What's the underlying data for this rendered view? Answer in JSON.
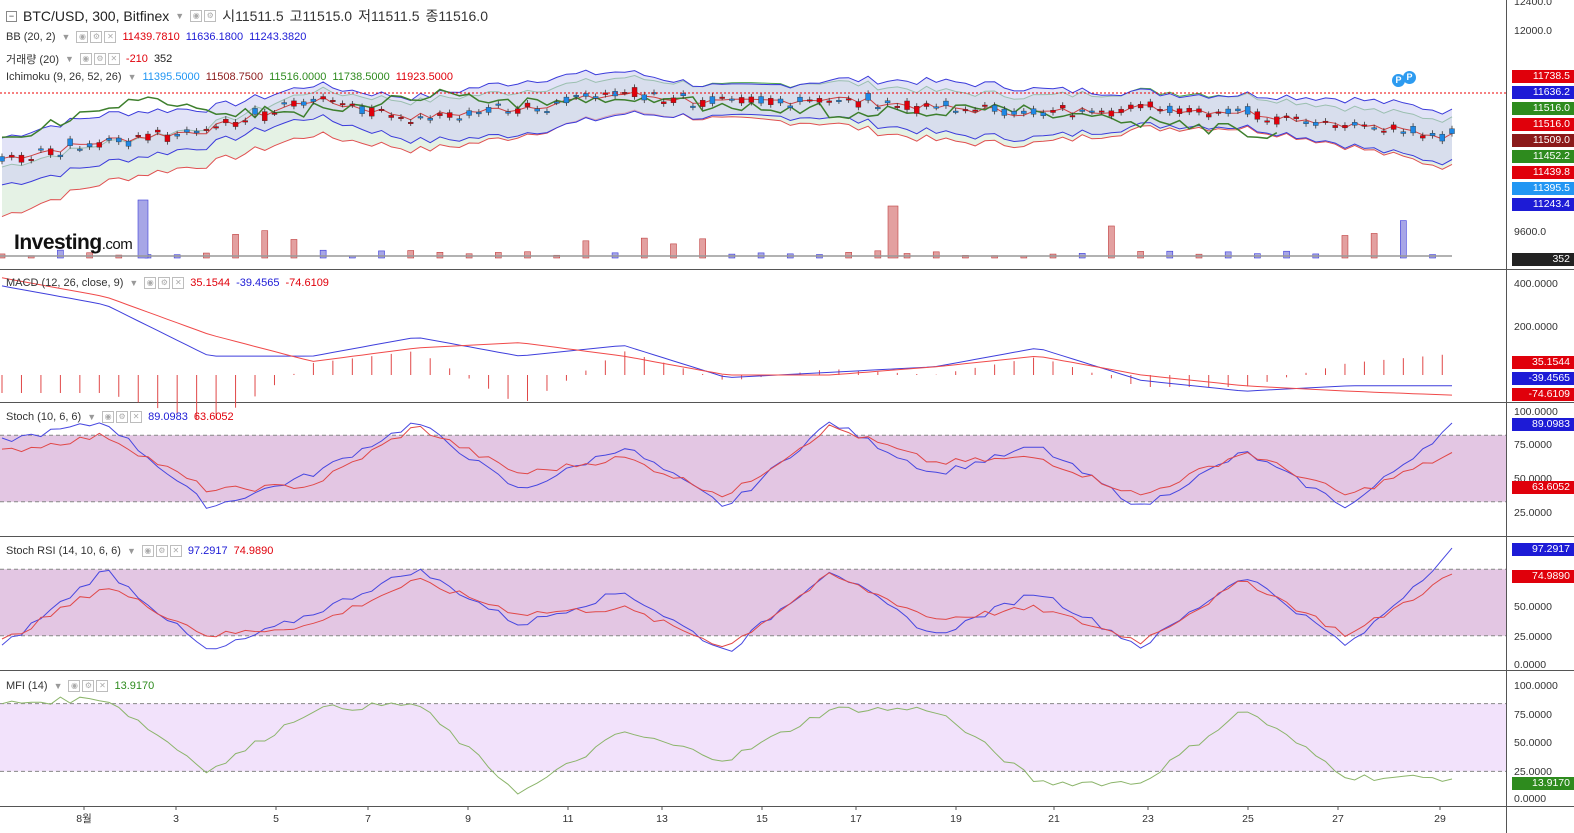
{
  "main": {
    "symbol": "BTC/USD, 300, Bitfinex",
    "ohlc": [
      {
        "k": "시",
        "v": "11511.5"
      },
      {
        "k": "고",
        "v": "11515.0"
      },
      {
        "k": "저",
        "v": "11511.5"
      },
      {
        "k": "종",
        "v": "11516.0"
      }
    ],
    "bb": {
      "label": "BB (20, 2)",
      "v1": "11439.7810",
      "v2": "11636.1800",
      "v3": "11243.3820"
    },
    "volume": {
      "label": "거래량 (20)",
      "v1": "-210",
      "v2": "352"
    },
    "ichimoku": {
      "label": "Ichimoku (9, 26, 52, 26)",
      "v1": "11395.5000",
      "v2": "11508.7500",
      "v3": "11516.0000",
      "v4": "11738.5000",
      "v5": "11923.5000"
    },
    "price_axis": [
      "12400.0",
      "12000.0",
      "9600.0",
      "0"
    ],
    "price_labels": [
      {
        "text": "11738.5",
        "color": "#e0000b"
      },
      {
        "text": "11636.2",
        "color": "#1d1bd6"
      },
      {
        "text": "11516.0",
        "color": "#2e8b1e"
      },
      {
        "text": "11516.0",
        "color": "#e0000b"
      },
      {
        "text": "11509.0",
        "color": "#8b1a1a"
      },
      {
        "text": "11452.2",
        "color": "#2e8b1e"
      },
      {
        "text": "11439.8",
        "color": "#e0000b"
      },
      {
        "text": "11395.5",
        "color": "#2196f3"
      },
      {
        "text": "11243.4",
        "color": "#1d1bd6"
      }
    ],
    "vol_label": "352",
    "logo": "Investing",
    "logo_suffix": ".com",
    "pin_label": "P"
  },
  "macd": {
    "label": "MACD (12, 26, close, 9)",
    "v1": "35.1544",
    "v2": "-39.4565",
    "v3": "-74.6109",
    "axis": [
      "400.0000",
      "200.0000"
    ],
    "labels": [
      {
        "text": "35.1544",
        "color": "#e0000b"
      },
      {
        "text": "-39.4565",
        "color": "#1d1bd6"
      },
      {
        "text": "-74.6109",
        "color": "#e0000b"
      }
    ]
  },
  "stoch": {
    "label": "Stoch (10, 6, 6)",
    "v1": "89.0983",
    "v2": "63.6052",
    "axis": [
      "100.0000",
      "75.0000",
      "50.0000",
      "25.0000"
    ],
    "labels": [
      {
        "text": "89.0983",
        "color": "#1d1bd6"
      },
      {
        "text": "63.6052",
        "color": "#e0000b"
      }
    ]
  },
  "stochrsi": {
    "label": "Stoch RSI (14, 10, 6, 6)",
    "v1": "97.2917",
    "v2": "74.9890",
    "axis": [
      "50.0000",
      "25.0000",
      "0.0000"
    ],
    "labels": [
      {
        "text": "97.2917",
        "color": "#1d1bd6"
      },
      {
        "text": "74.9890",
        "color": "#e0000b"
      }
    ]
  },
  "mfi": {
    "label": "MFI (14)",
    "v1": "13.9170",
    "axis": [
      "100.0000",
      "75.0000",
      "50.0000",
      "25.0000",
      "0.0000"
    ],
    "labels": [
      {
        "text": "13.9170",
        "color": "#2e8b1e"
      }
    ]
  },
  "x_axis": [
    "8월",
    "3",
    "5",
    "7",
    "9",
    "11",
    "13",
    "15",
    "17",
    "19",
    "21",
    "23",
    "25",
    "27",
    "29"
  ],
  "colors": {
    "bull": "#1e88e5",
    "bear": "#e0000b",
    "macd_line": "#3f3fdc",
    "signal_line": "#f04a4a",
    "mfi_line": "#8bb46a",
    "osc_band": "#e3c6e3",
    "mfi_band": "#f2e2fb"
  },
  "chart_data": [
    {
      "type": "line",
      "title": "BTC/USD, 300, Bitfinex",
      "indicators": [
        "BB (20, 2)",
        "거래량 (20)",
        "Ichimoku (9, 26, 52, 26)"
      ],
      "x": [
        "8월",
        "3",
        "5",
        "7",
        "9",
        "11",
        "13",
        "15",
        "17",
        "19",
        "21",
        "23",
        "25",
        "27",
        "29"
      ],
      "series": [
        {
          "name": "BB (20, 2)",
          "values": [
            11350,
            11480,
            11560,
            11780,
            11650,
            11720,
            11820,
            11750,
            11790,
            11720,
            11680,
            11720,
            11690,
            11600,
            11510
          ]
        }
      ]
    },
    {
      "type": "line",
      "title": "MACD (12, 26, close, 9)",
      "series": [
        {
          "name": "MACD",
          "values": [
            330,
            260,
            70,
            70,
            140,
            70,
            110,
            -10,
            10,
            30,
            100,
            -20,
            -60,
            -40,
            -39.4565
          ]
        },
        {
          "name": "Signal",
          "values": [
            360,
            290,
            150,
            50,
            100,
            120,
            70,
            0,
            0,
            30,
            70,
            0,
            -40,
            -60,
            -74.6109
          ]
        }
      ]
    },
    {
      "type": "line",
      "title": "Stoch (10, 6, 6)",
      "ylim": [
        0,
        100
      ],
      "series": [
        {
          "name": "%K",
          "values": [
            75,
            92,
            15,
            45,
            92,
            30,
            70,
            15,
            92,
            45,
            70,
            15,
            65,
            15,
            89.0983
          ]
        },
        {
          "name": "%D",
          "values": [
            65,
            80,
            30,
            35,
            88,
            45,
            60,
            25,
            88,
            55,
            60,
            25,
            65,
            25,
            63.6052
          ]
        }
      ]
    },
    {
      "type": "line",
      "title": "Stoch RSI (14, 10, 6, 6)",
      "ylim": [
        0,
        100
      ],
      "series": [
        {
          "name": "%K",
          "values": [
            10,
            80,
            5,
            40,
            80,
            30,
            60,
            5,
            80,
            20,
            60,
            10,
            75,
            10,
            97.2917
          ]
        },
        {
          "name": "%D",
          "values": [
            15,
            65,
            20,
            30,
            70,
            40,
            45,
            10,
            75,
            35,
            45,
            15,
            70,
            20,
            74.989
          ]
        }
      ]
    },
    {
      "type": "line",
      "title": "MFI (14)",
      "ylim": [
        0,
        100
      ],
      "series": [
        {
          "name": "MFI",
          "values": [
            80,
            85,
            20,
            75,
            80,
            0,
            55,
            30,
            75,
            75,
            10,
            10,
            75,
            15,
            13.917
          ]
        }
      ]
    }
  ]
}
